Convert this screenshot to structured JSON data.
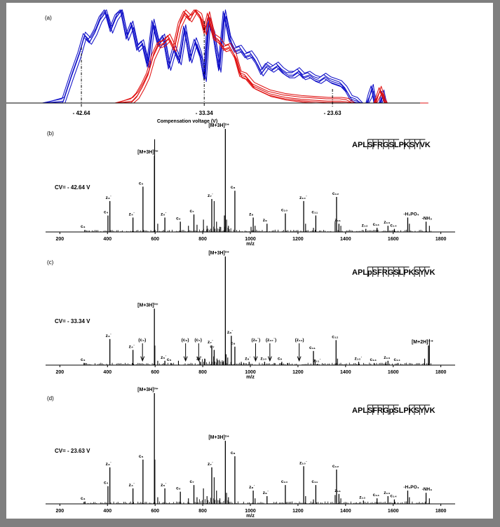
{
  "chart_data": [
    {
      "panel": "(a)",
      "type": "line",
      "xlabel": "Compensation voltage (V)",
      "tick_labels": [
        "- 42.64",
        "- 33.34",
        "- 23.63"
      ],
      "ticks": [
        -42.64,
        -33.34,
        -23.63
      ],
      "xlim": [
        -45,
        -17
      ],
      "ylim": [
        0,
        100
      ],
      "colors": {
        "blue": "#1010c8",
        "red": "#e01010",
        "axis": "#000000"
      },
      "series": [
        {
          "color": "blue",
          "x": [
            -47,
            -45.5,
            -44,
            -43.4,
            -42.8,
            -42.4,
            -42,
            -41.6,
            -41.2,
            -40.8,
            -40.4,
            -40,
            -39.6,
            -39.2,
            -38.8,
            -38.4,
            -38,
            -37.6,
            -37.2,
            -36.8,
            -36.4,
            -36,
            -35.6,
            -35.2,
            -34.8,
            -34.4,
            -34,
            -33.6,
            -33.3,
            -33,
            -32.6,
            -32.2,
            -31.8,
            -31.4,
            -31,
            -30.6,
            -30.2,
            -29.8,
            -29.4,
            -29,
            -28.6,
            -28.2,
            -27.8,
            -27.4,
            -27,
            -26.6,
            -26.2,
            -25.8,
            -25.4,
            -25,
            -24.6,
            -24.2,
            -23.8,
            -23.4,
            -23,
            -22.6,
            -22.2,
            -21.8,
            -21.4,
            -21,
            -20.8,
            -20.6,
            -20.4,
            -20.2,
            -20,
            -19.8,
            -19.6,
            -19.4,
            -19,
            -18,
            -16.5
          ],
          "y": [
            0,
            0,
            2,
            28,
            52,
            72,
            66,
            76,
            90,
            98,
            78,
            92,
            100,
            70,
            84,
            58,
            64,
            40,
            86,
            62,
            70,
            38,
            58,
            44,
            80,
            46,
            66,
            50,
            26,
            88,
            72,
            36,
            96,
            68,
            56,
            58,
            50,
            52,
            44,
            32,
            40,
            36,
            40,
            34,
            30,
            30,
            34,
            28,
            30,
            26,
            24,
            28,
            24,
            22,
            20,
            14,
            4,
            2,
            0,
            0,
            8,
            16,
            0,
            0,
            0,
            10,
            0,
            0,
            0,
            0,
            0
          ]
        },
        {
          "color": "red",
          "x": [
            -47,
            -40,
            -38.8,
            -38.4,
            -38,
            -37.6,
            -37.2,
            -36.8,
            -36.4,
            -36,
            -35.6,
            -35.2,
            -34.8,
            -34.4,
            -34,
            -33.6,
            -33.3,
            -33,
            -32.6,
            -32.2,
            -31.8,
            -31.4,
            -31,
            -30.6,
            -30.2,
            -29.6,
            -29,
            -28.4,
            -27.8,
            -27.2,
            -26.6,
            -26,
            -25,
            -24,
            -23,
            -22.5,
            -22,
            -21,
            -20.4,
            -20,
            -19.6,
            -19.4,
            -19,
            -16.5
          ],
          "y": [
            0,
            0,
            2,
            8,
            18,
            30,
            50,
            62,
            64,
            70,
            58,
            84,
            96,
            90,
            100,
            92,
            76,
            94,
            70,
            66,
            58,
            60,
            50,
            30,
            28,
            18,
            14,
            10,
            8,
            6,
            5,
            4,
            3,
            2,
            2,
            1,
            0,
            0,
            0,
            14,
            0,
            0,
            0,
            0
          ]
        }
      ]
    },
    {
      "panel": "(b)",
      "type": "bar",
      "peptide": "APLSFRGSLPKSYVK",
      "cv_label": "CV= - 42.64 V",
      "xlabel": "m/z",
      "xlim": [
        140,
        1860
      ],
      "x_ticks": [
        200,
        400,
        600,
        800,
        1000,
        1200,
        1400,
        1600,
        1800
      ],
      "ylim": [
        0,
        100
      ],
      "labeled_peaks": [
        {
          "label": "[M+3H]³⁺",
          "mz": 597,
          "intensity": 74
        },
        {
          "label": "[M+3H]²⁺",
          "mz": 895,
          "intensity": 100
        },
        {
          "label": "c₄",
          "mz": 402,
          "intensity": 16
        },
        {
          "label": "z₃˙",
          "mz": 410,
          "intensity": 30
        },
        {
          "label": "z₄˙",
          "mz": 507,
          "intensity": 14
        },
        {
          "label": "c₅",
          "mz": 549,
          "intensity": 44
        },
        {
          "label": "z₅˙",
          "mz": 641,
          "intensity": 14
        },
        {
          "label": "c₆",
          "mz": 706,
          "intensity": 10
        },
        {
          "label": "c₇",
          "mz": 763,
          "intensity": 17
        },
        {
          "label": "z₇˙",
          "mz": 838,
          "intensity": 32
        },
        {
          "label": "c₈",
          "mz": 935,
          "intensity": 40
        },
        {
          "label": "z₈",
          "mz": 1012,
          "intensity": 14
        },
        {
          "label": "z₉",
          "mz": 1070,
          "intensity": 8
        },
        {
          "label": "c₁₀",
          "mz": 1147,
          "intensity": 18
        },
        {
          "label": "z₁₀˙",
          "mz": 1224,
          "intensity": 30
        },
        {
          "label": "c₁₁",
          "mz": 1275,
          "intensity": 16
        },
        {
          "label": "c₁₂",
          "mz": 1362,
          "intensity": 34
        },
        {
          "label": "z₁₁",
          "mz": 1372,
          "intensity": 8
        },
        {
          "label": "z₁₂",
          "mz": 1485,
          "intensity": 3
        },
        {
          "label": "c₁₃",
          "mz": 1532,
          "intensity": 4
        },
        {
          "label": "z₁₃",
          "mz": 1578,
          "intensity": 6
        },
        {
          "label": "c₁₄",
          "mz": 1605,
          "intensity": 3
        },
        {
          "label": "-H₃PO₄",
          "mz": 1661,
          "intensity": 14
        },
        {
          "label": "-NH₃",
          "mz": 1738,
          "intensity": 10
        },
        {
          "label": "c₃",
          "mz": 305,
          "intensity": 2
        }
      ],
      "minor_peaks": [
        [
          598,
          90
        ],
        [
          611,
          8
        ],
        [
          740,
          6
        ],
        [
          776,
          7
        ],
        [
          803,
          12
        ],
        [
          818,
          6
        ],
        [
          848,
          30
        ],
        [
          858,
          10
        ],
        [
          872,
          5
        ],
        [
          891,
          16
        ],
        [
          900,
          12
        ],
        [
          908,
          6
        ],
        [
          1003,
          5
        ],
        [
          1020,
          6
        ],
        [
          1232,
          8
        ],
        [
          1265,
          4
        ],
        [
          1356,
          10
        ],
        [
          1380,
          6
        ],
        [
          1668,
          8
        ],
        [
          1752,
          6
        ]
      ]
    },
    {
      "panel": "(c)",
      "type": "bar",
      "peptide": "APLpSFRGSLPKSYVK",
      "cv_label": "CV= - 33.34 V",
      "xlabel": "m/z",
      "xlim": [
        140,
        1860
      ],
      "x_ticks": [
        200,
        400,
        600,
        800,
        1000,
        1200,
        1400,
        1600,
        1800
      ],
      "ylim": [
        0,
        100
      ],
      "labeled_peaks": [
        {
          "label": "[M+3H]²⁺",
          "mz": 895,
          "intensity": 100
        },
        {
          "label": "[M+3H]³⁺",
          "mz": 597,
          "intensity": 52
        },
        {
          "label": "z₃˙",
          "mz": 410,
          "intensity": 24
        },
        {
          "label": "z₄˙",
          "mz": 507,
          "intensity": 14
        },
        {
          "label": "c₃",
          "mz": 305,
          "intensity": 2
        },
        {
          "label": "(c₄)",
          "mz": 547,
          "intensity": 0
        },
        {
          "label": "z₅˙",
          "mz": 641,
          "intensity": 4
        },
        {
          "label": "c₅",
          "mz": 667,
          "intensity": 2
        },
        {
          "label": "(c₆)",
          "mz": 728,
          "intensity": 0
        },
        {
          "label": "(c₇)",
          "mz": 783,
          "intensity": 0
        },
        {
          "label": "z₆˙",
          "mz": 791,
          "intensity": 3
        },
        {
          "label": "z₇˙",
          "mz": 838,
          "intensity": 18
        },
        {
          "label": "c₇",
          "mz": 848,
          "intensity": 14
        },
        {
          "label": "z₈˙",
          "mz": 920,
          "intensity": 27
        },
        {
          "label": "c₈",
          "mz": 935,
          "intensity": 17
        },
        {
          "label": "z₉˙",
          "mz": 995,
          "intensity": 3
        },
        {
          "label": "(z₉˙)",
          "mz": 1022,
          "intensity": 0
        },
        {
          "label": "(z₁₀˙)",
          "mz": 1082,
          "intensity": 0
        },
        {
          "label": "z₁₀",
          "mz": 1060,
          "intensity": 3
        },
        {
          "label": "c₉",
          "mz": 1132,
          "intensity": 3
        },
        {
          "label": "(z₁₁)",
          "mz": 1205,
          "intensity": 0
        },
        {
          "label": "c₁₁",
          "mz": 1265,
          "intensity": 13
        },
        {
          "label": "z₁₁˙",
          "mz": 1282,
          "intensity": 1
        },
        {
          "label": "c₁₂",
          "mz": 1360,
          "intensity": 23
        },
        {
          "label": "z₁₂˙",
          "mz": 1455,
          "intensity": 3
        },
        {
          "label": "c₁₃",
          "mz": 1520,
          "intensity": 2
        },
        {
          "label": "z₁₃",
          "mz": 1578,
          "intensity": 4
        },
        {
          "label": "c₁₄",
          "mz": 1620,
          "intensity": 2
        },
        {
          "label": "[M+2H]⁺⁺",
          "mz": 1748,
          "intensity": 18
        }
      ],
      "minor_peaks": [
        [
          599,
          18
        ],
        [
          611,
          4
        ],
        [
          698,
          4
        ],
        [
          808,
          6
        ],
        [
          846,
          8
        ],
        [
          860,
          6
        ],
        [
          870,
          4
        ],
        [
          885,
          3
        ],
        [
          898,
          10
        ],
        [
          905,
          7
        ],
        [
          962,
          3
        ],
        [
          972,
          2
        ],
        [
          1100,
          2
        ],
        [
          1156,
          2
        ],
        [
          1272,
          5
        ],
        [
          1366,
          6
        ],
        [
          1569,
          3
        ],
        [
          1732,
          6
        ],
        [
          1752,
          24
        ]
      ]
    },
    {
      "panel": "(d)",
      "type": "bar",
      "peptide": "APLSFRGpSLPKSYVK",
      "cv_label": "CV= - 23.63 V",
      "xlabel": "m/z",
      "xlim": [
        140,
        1860
      ],
      "x_ticks": [
        200,
        400,
        600,
        800,
        1000,
        1200,
        1400,
        1600,
        1800
      ],
      "ylim": [
        0,
        100
      ],
      "labeled_peaks": [
        {
          "label": "[M+3H]³⁺",
          "mz": 597,
          "intensity": 100
        },
        {
          "label": "[M+3H]²⁺",
          "mz": 895,
          "intensity": 57
        },
        {
          "label": "c₃",
          "mz": 305,
          "intensity": 2
        },
        {
          "label": "c₄",
          "mz": 402,
          "intensity": 16
        },
        {
          "label": "z₃˙",
          "mz": 410,
          "intensity": 33
        },
        {
          "label": "z₄˙",
          "mz": 507,
          "intensity": 14
        },
        {
          "label": "c₅",
          "mz": 549,
          "intensity": 40
        },
        {
          "label": "z₅˙",
          "mz": 641,
          "intensity": 14
        },
        {
          "label": "c₆",
          "mz": 706,
          "intensity": 11
        },
        {
          "label": "c₇",
          "mz": 763,
          "intensity": 17
        },
        {
          "label": "z₇˙",
          "mz": 838,
          "intensity": 33
        },
        {
          "label": "c₈",
          "mz": 935,
          "intensity": 43
        },
        {
          "label": "z₈˙",
          "mz": 1012,
          "intensity": 12
        },
        {
          "label": "z₉˙",
          "mz": 1070,
          "intensity": 7
        },
        {
          "label": "c₁₀",
          "mz": 1147,
          "intensity": 17
        },
        {
          "label": "z₁₀˙",
          "mz": 1224,
          "intensity": 34
        },
        {
          "label": "c₁₁",
          "mz": 1275,
          "intensity": 17
        },
        {
          "label": "c₁₂",
          "mz": 1362,
          "intensity": 31
        },
        {
          "label": "z₁₁",
          "mz": 1372,
          "intensity": 9
        },
        {
          "label": "z₁₂",
          "mz": 1475,
          "intensity": 3
        },
        {
          "label": "c₁₃",
          "mz": 1532,
          "intensity": 5
        },
        {
          "label": "z₁₃",
          "mz": 1578,
          "intensity": 7
        },
        {
          "label": "c₁₄",
          "mz": 1605,
          "intensity": 4
        },
        {
          "label": "-H₃PO₄",
          "mz": 1661,
          "intensity": 12
        },
        {
          "label": "-NH₃",
          "mz": 1738,
          "intensity": 10
        }
      ],
      "minor_peaks": [
        [
          599,
          40
        ],
        [
          611,
          6
        ],
        [
          740,
          5
        ],
        [
          776,
          6
        ],
        [
          803,
          14
        ],
        [
          818,
          7
        ],
        [
          848,
          24
        ],
        [
          858,
          12
        ],
        [
          872,
          5
        ],
        [
          900,
          10
        ],
        [
          908,
          6
        ],
        [
          1020,
          5
        ],
        [
          1232,
          7
        ],
        [
          1265,
          4
        ],
        [
          1356,
          8
        ],
        [
          1380,
          5
        ],
        [
          1668,
          6
        ],
        [
          1752,
          5
        ]
      ]
    }
  ]
}
